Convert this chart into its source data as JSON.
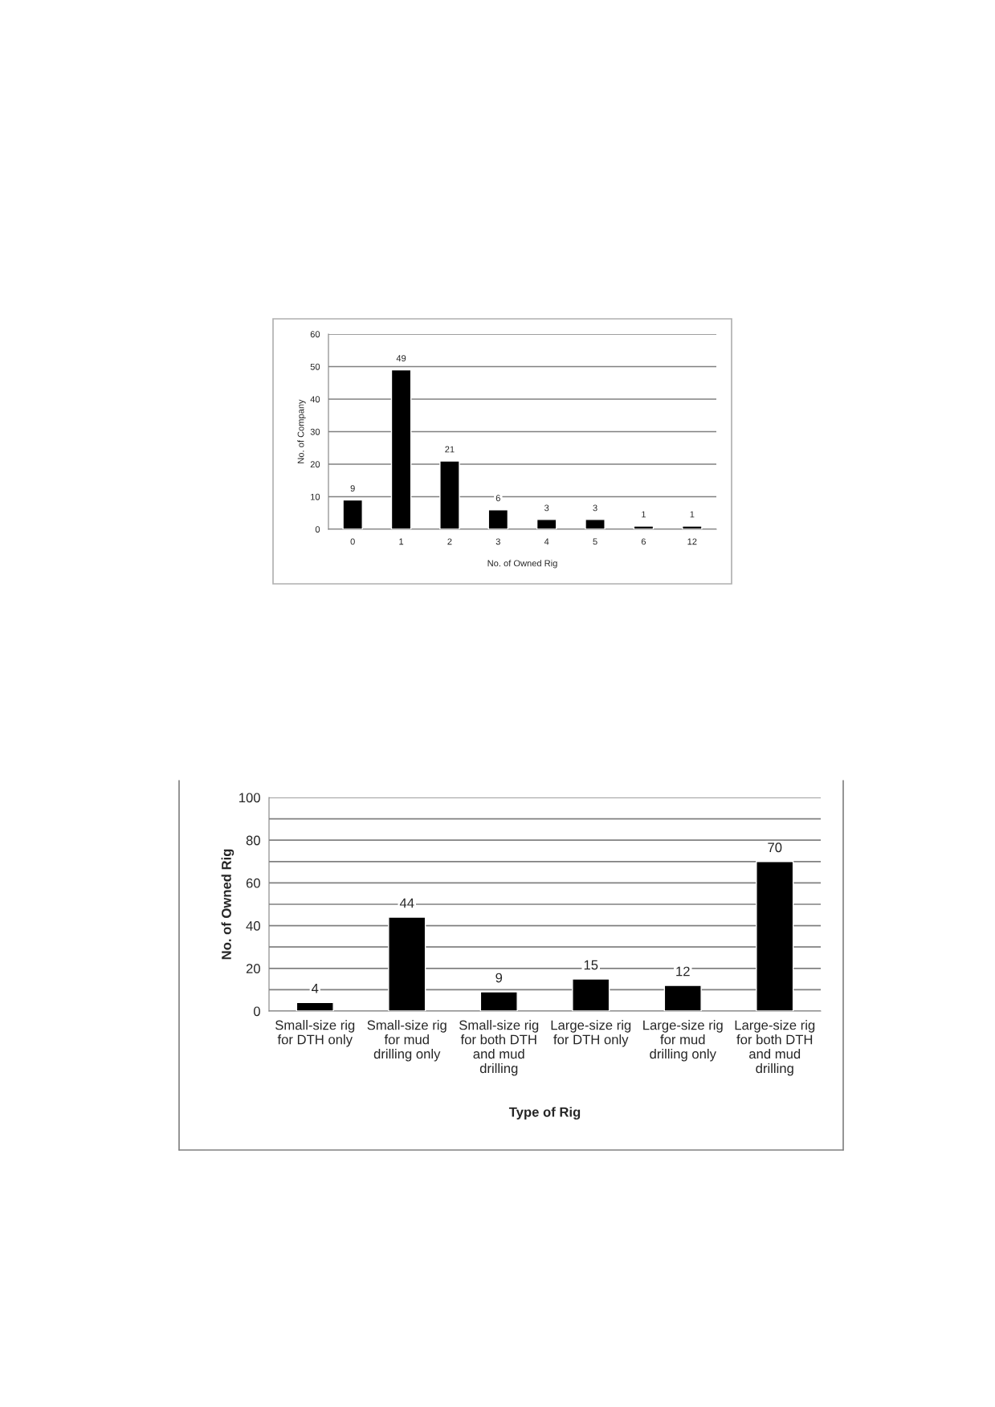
{
  "chart_data": [
    {
      "type": "bar",
      "xlabel": "No. of Owned Rig",
      "ylabel": "No. of Company",
      "categories": [
        "0",
        "1",
        "2",
        "3",
        "4",
        "5",
        "6",
        "12"
      ],
      "values": [
        9,
        49,
        21,
        6,
        3,
        3,
        1,
        1
      ],
      "color": "#000000",
      "ylim": [
        0,
        60
      ],
      "yticks": [
        0,
        10,
        20,
        30,
        40,
        50,
        60
      ],
      "grid": "y",
      "data_labels": true,
      "legend": false
    },
    {
      "type": "bar",
      "xlabel": "Type of Rig",
      "ylabel": "No. of Owned Rig",
      "categories": [
        "Small-size rig\nfor DTH only",
        "Small-size rig\nfor mud\ndrilling only",
        "Small-size rig\nfor both DTH\nand mud\ndrilling",
        "Large-size rig\nfor DTH only",
        "Large-size rig\nfor mud\ndrilling only",
        "Large-size rig\nfor both DTH\nand mud\ndrilling"
      ],
      "values": [
        4,
        44,
        9,
        15,
        12,
        70
      ],
      "color": "#000000",
      "ylim": [
        0,
        100
      ],
      "yticks": [
        0,
        {
          "value": 10,
          "label": null
        },
        20,
        {
          "value": 30,
          "label": null
        },
        40,
        {
          "value": 50,
          "label": null
        },
        60,
        {
          "value": 70,
          "label": null
        },
        80,
        {
          "value": 90,
          "label": null
        },
        100
      ],
      "grid": "y",
      "data_labels": true,
      "legend": false
    }
  ]
}
